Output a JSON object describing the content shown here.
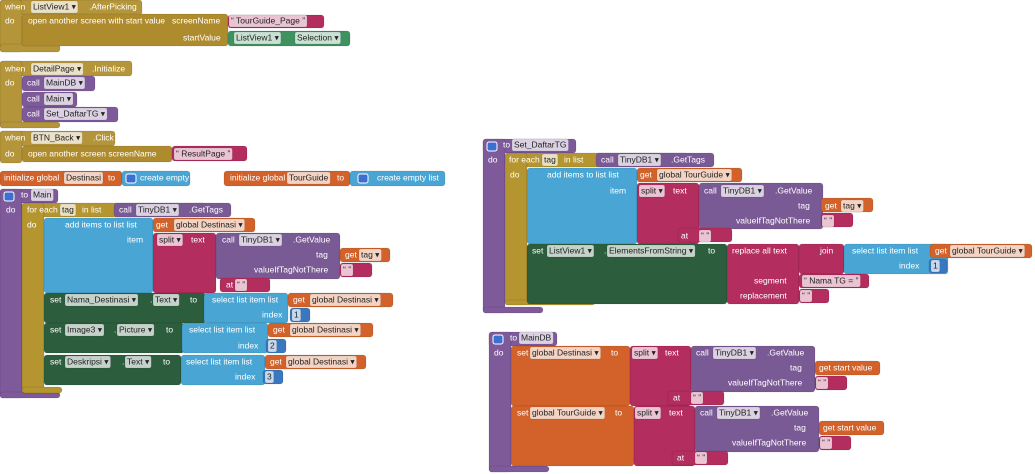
{
  "groups": [
    {
      "texts": [
        "when",
        "ListView1 ▾",
        ".AfterPicking",
        "do",
        "open another screen with start value",
        "screenName",
        "“ TourGuide_Page ”",
        "startValue",
        "ListView1 ▾",
        "Selection ▾"
      ]
    },
    {
      "texts": [
        "when",
        "DetailPage ▾",
        ".Initialize",
        "do",
        "call",
        "MainDB ▾",
        "call",
        "Main ▾",
        "call",
        "Set_DaftarTG ▾"
      ]
    },
    {
      "texts": [
        "when",
        "BTN_Back ▾",
        ".Click",
        "do",
        "open another screen  screenName",
        "“ ResultPage ”"
      ]
    },
    {
      "texts": [
        "initialize global",
        "Destinasi",
        "to",
        "create empty list"
      ]
    },
    {
      "texts": [
        "initialize global",
        "TourGuide",
        "to",
        "create empty list"
      ]
    },
    {
      "texts": [
        "to",
        "Main",
        "do",
        "for each",
        "tag",
        "in list",
        "call",
        "TinyDB1 ▾",
        ".GetTags",
        "do",
        "add items to list  list",
        "get",
        "global Destinasi ▾",
        "item",
        "split ▾",
        "text",
        "call",
        "TinyDB1 ▾",
        ".GetValue",
        "tag",
        "get",
        "tag ▾",
        "valueIfTagNotThere",
        "“ ”",
        "at",
        "“ ”",
        "set",
        "Nama_Destinasi ▾",
        ".",
        "Text ▾",
        "to",
        "select list item  list",
        "get",
        "global Destinasi ▾",
        "index",
        "1",
        "set",
        "Image3 ▾",
        ".",
        "Picture ▾",
        "to",
        "select list item  list",
        "get",
        "global Destinasi ▾",
        "index",
        "2",
        "set",
        "Deskripsi ▾",
        ".",
        "Text ▾",
        "to",
        "select list item  list",
        "get",
        "global Destinasi ▾",
        "index",
        "3"
      ]
    },
    {
      "texts": [
        "to",
        "Set_DaftarTG",
        "do",
        "for each",
        "tag",
        "in list",
        "call",
        "TinyDB1 ▾",
        ".GetTags",
        "do",
        "add items to list  list",
        "get",
        "global TourGuide ▾",
        "item",
        "split ▾",
        "text",
        "call",
        "TinyDB1 ▾",
        ".GetValue",
        "tag",
        "get",
        "tag ▾",
        "valueIfTagNotThere",
        "“ ”",
        "at",
        "“ ”",
        "set",
        "ListView1 ▾",
        ".",
        "ElementsFromString ▾",
        "to",
        "replace all text",
        "join",
        "select list item  list",
        "get",
        "global TourGuide ▾",
        "index",
        "1",
        "segment",
        "“ Nama TG = ”",
        "replacement",
        "“ ”"
      ]
    },
    {
      "texts": [
        "to",
        "MainDB",
        "do",
        "set",
        "global Destinasi ▾",
        "to",
        "split ▾",
        "text",
        "call",
        "TinyDB1 ▾",
        ".GetValue",
        "tag",
        "get start value",
        "valueIfTagNotThere",
        "“ ”",
        "at",
        "“ ”",
        "set",
        "global TourGuide ▾",
        "to",
        "split ▾",
        "text",
        "call",
        "TinyDB1 ▾",
        ".GetValue",
        "tag",
        "get start value",
        "valueIfTagNotThere",
        "“ ”",
        "at",
        "“ ”"
      ]
    }
  ]
}
